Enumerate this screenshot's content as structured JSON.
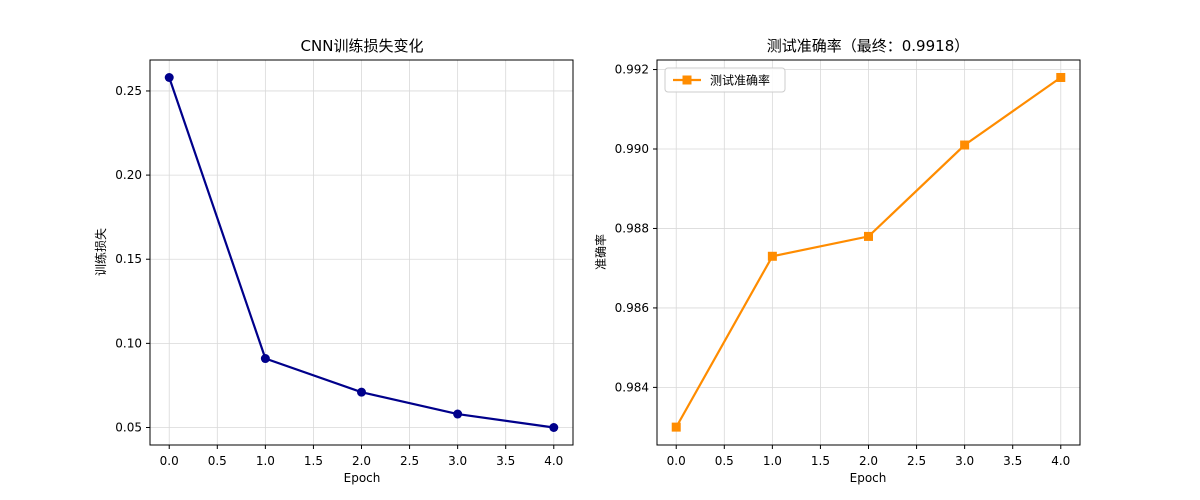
{
  "chart_data": [
    {
      "type": "line",
      "title": "CNN训练损失变化",
      "xlabel": "Epoch",
      "ylabel": "训练损失",
      "x": [
        0,
        1,
        2,
        3,
        4
      ],
      "series": [
        {
          "values": [
            0.258,
            0.091,
            0.071,
            0.058,
            0.05
          ],
          "color": "#00008b",
          "marker": "circle"
        }
      ],
      "xlim": [
        -0.2,
        4.2
      ],
      "ylim": [
        0.0396,
        0.2684
      ],
      "xticks": [
        0,
        0.5,
        1,
        1.5,
        2,
        2.5,
        3,
        3.5,
        4
      ],
      "xtick_labels": [
        "0.0",
        "0.5",
        "1.0",
        "1.5",
        "2.0",
        "2.5",
        "3.0",
        "3.5",
        "4.0"
      ],
      "yticks": [
        0.05,
        0.1,
        0.15,
        0.2,
        0.25
      ],
      "ytick_labels": [
        "0.05",
        "0.10",
        "0.15",
        "0.20",
        "0.25"
      ],
      "grid": true,
      "legend": null
    },
    {
      "type": "line",
      "title": "测试准确率（最终：0.9918）",
      "xlabel": "Epoch",
      "ylabel": "准确率",
      "x": [
        0,
        1,
        2,
        3,
        4
      ],
      "series": [
        {
          "name": "测试准确率",
          "values": [
            0.983,
            0.9873,
            0.9878,
            0.9901,
            0.9918
          ],
          "color": "#ff8c00",
          "marker": "square"
        }
      ],
      "xlim": [
        -0.2,
        4.2
      ],
      "ylim": [
        0.98255,
        0.99224
      ],
      "xticks": [
        0,
        0.5,
        1,
        1.5,
        2,
        2.5,
        3,
        3.5,
        4
      ],
      "xtick_labels": [
        "0.0",
        "0.5",
        "1.0",
        "1.5",
        "2.0",
        "2.5",
        "3.0",
        "3.5",
        "4.0"
      ],
      "yticks": [
        0.984,
        0.986,
        0.988,
        0.99,
        0.992
      ],
      "ytick_labels": [
        "0.984",
        "0.986",
        "0.988",
        "0.990",
        "0.992"
      ],
      "grid": true,
      "legend": "top-left"
    }
  ]
}
